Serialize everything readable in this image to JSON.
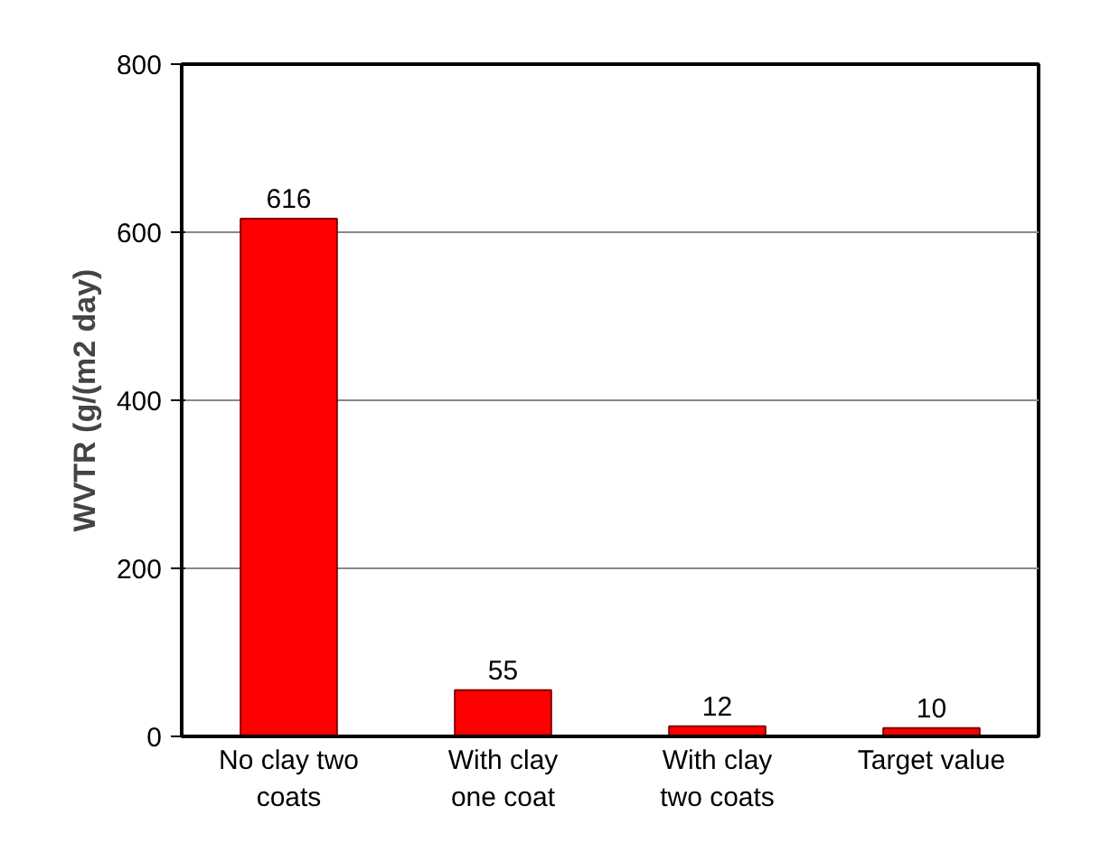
{
  "chart_data": {
    "type": "bar",
    "ylabel": "WVTR (g/(m2 day)",
    "categories": [
      "No clay two\ncoats",
      "With clay\none coat",
      "With clay\ntwo coats",
      "Target value"
    ],
    "values": [
      616,
      55,
      12,
      10
    ],
    "color": "#ff0000",
    "data_labels": true,
    "ylim": [
      0,
      800
    ],
    "yticks": [
      0,
      200,
      400,
      600,
      800
    ],
    "grid": "y"
  }
}
